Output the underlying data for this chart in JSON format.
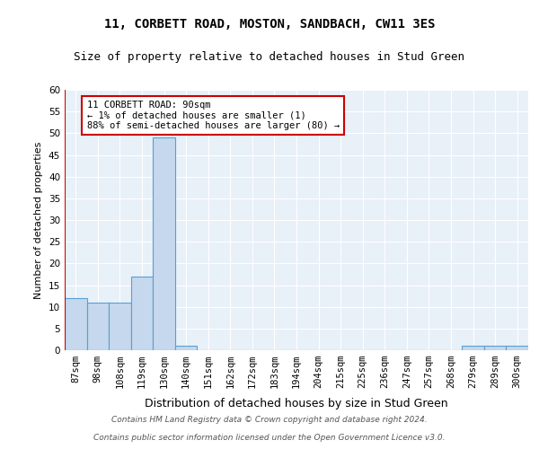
{
  "title1": "11, CORBETT ROAD, MOSTON, SANDBACH, CW11 3ES",
  "title2": "Size of property relative to detached houses in Stud Green",
  "xlabel": "Distribution of detached houses by size in Stud Green",
  "ylabel": "Number of detached properties",
  "categories": [
    "87sqm",
    "98sqm",
    "108sqm",
    "119sqm",
    "130sqm",
    "140sqm",
    "151sqm",
    "162sqm",
    "172sqm",
    "183sqm",
    "194sqm",
    "204sqm",
    "215sqm",
    "225sqm",
    "236sqm",
    "247sqm",
    "257sqm",
    "268sqm",
    "279sqm",
    "289sqm",
    "300sqm"
  ],
  "values": [
    12,
    11,
    11,
    17,
    49,
    1,
    0,
    0,
    0,
    0,
    0,
    0,
    0,
    0,
    0,
    0,
    0,
    0,
    1,
    1,
    1
  ],
  "bar_color": "#c5d8ed",
  "bar_edge_color": "#5a9fd4",
  "highlight_line_color": "#cc0000",
  "annotation_line1": "11 CORBETT ROAD: 90sqm",
  "annotation_line2": "← 1% of detached houses are smaller (1)",
  "annotation_line3": "88% of semi-detached houses are larger (80) →",
  "annotation_box_color": "#ffffff",
  "annotation_box_edge": "#cc0000",
  "ylim": [
    0,
    60
  ],
  "yticks": [
    0,
    5,
    10,
    15,
    20,
    25,
    30,
    35,
    40,
    45,
    50,
    55,
    60
  ],
  "footer1": "Contains HM Land Registry data © Crown copyright and database right 2024.",
  "footer2": "Contains public sector information licensed under the Open Government Licence v3.0.",
  "plot_bg_color": "#e8f0f8",
  "title1_fontsize": 10,
  "title2_fontsize": 9,
  "xlabel_fontsize": 9,
  "ylabel_fontsize": 8,
  "tick_fontsize": 7.5,
  "footer_fontsize": 6.5
}
